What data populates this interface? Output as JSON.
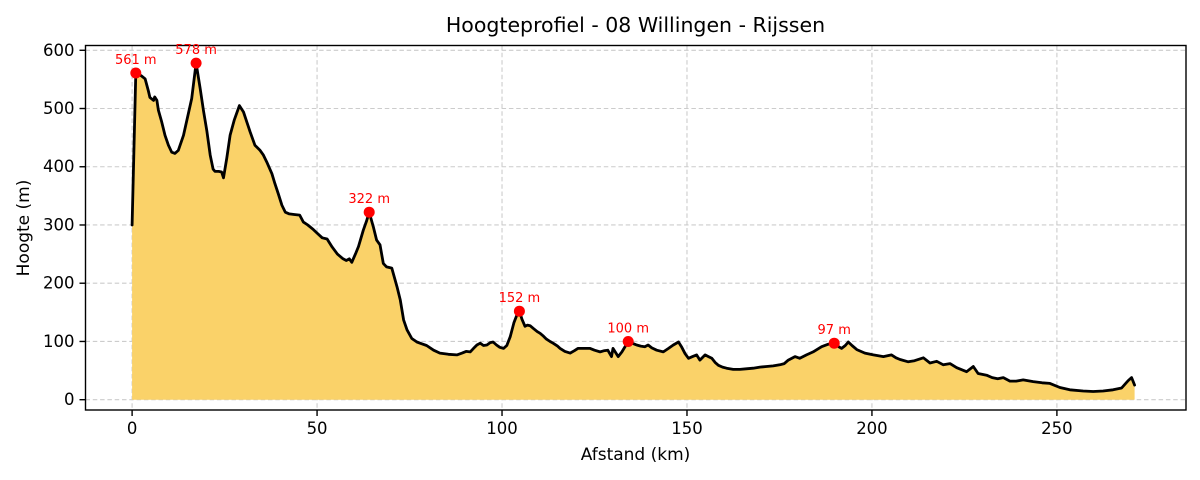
{
  "chart_data": {
    "type": "area",
    "title": "Hoogteprofiel - 08 Willingen - Rijssen",
    "xlabel": "Afstand (km)",
    "ylabel": "Hoogte (m)",
    "xlim": [
      -12.6,
      284.9
    ],
    "ylim": [
      -17.7,
      608.2
    ],
    "xticks": [
      0,
      50,
      100,
      150,
      200,
      250
    ],
    "yticks": [
      0,
      100,
      200,
      300,
      400,
      500,
      600
    ],
    "grid": true,
    "line_color": "#000000",
    "fill_color": "#fad269",
    "marker_color": "#ff0000",
    "peak_markers": [
      {
        "x": 1.0,
        "y": 561,
        "label": "561 m"
      },
      {
        "x": 17.3,
        "y": 578,
        "label": "578 m"
      },
      {
        "x": 64.1,
        "y": 322,
        "label": "322 m"
      },
      {
        "x": 104.7,
        "y": 152,
        "label": "152 m"
      },
      {
        "x": 134.1,
        "y": 100,
        "label": "100 m"
      },
      {
        "x": 189.8,
        "y": 97,
        "label": "97 m"
      }
    ],
    "points": [
      [
        0,
        300
      ],
      [
        1,
        561
      ],
      [
        2.5,
        556
      ],
      [
        3.5,
        551
      ],
      [
        4.4,
        530
      ],
      [
        4.8,
        519
      ],
      [
        5.8,
        514
      ],
      [
        6.1,
        520
      ],
      [
        6.7,
        514
      ],
      [
        7.1,
        497
      ],
      [
        8,
        477
      ],
      [
        8.9,
        454
      ],
      [
        9.8,
        437
      ],
      [
        10.7,
        425
      ],
      [
        11.6,
        423
      ],
      [
        12.5,
        428
      ],
      [
        13.9,
        454
      ],
      [
        15.2,
        491
      ],
      [
        16.1,
        517
      ],
      [
        17.3,
        578
      ],
      [
        18.4,
        534
      ],
      [
        19.3,
        496
      ],
      [
        20.2,
        462
      ],
      [
        21.1,
        420
      ],
      [
        21.9,
        396
      ],
      [
        22.4,
        392
      ],
      [
        23.4,
        392
      ],
      [
        24.2,
        391
      ],
      [
        24.7,
        381
      ],
      [
        25.6,
        415
      ],
      [
        26.5,
        454
      ],
      [
        27.6,
        480
      ],
      [
        29,
        505
      ],
      [
        30.1,
        494
      ],
      [
        31,
        477
      ],
      [
        31.9,
        460
      ],
      [
        33.2,
        437
      ],
      [
        34.6,
        428
      ],
      [
        35.5,
        420
      ],
      [
        36.4,
        408
      ],
      [
        37.8,
        388
      ],
      [
        38.6,
        371
      ],
      [
        39.5,
        354
      ],
      [
        40.5,
        334
      ],
      [
        41.4,
        322
      ],
      [
        42.5,
        319
      ],
      [
        43.8,
        318
      ],
      [
        45.3,
        317
      ],
      [
        46.3,
        305
      ],
      [
        47.5,
        300
      ],
      [
        49,
        292
      ],
      [
        50,
        286
      ],
      [
        51.4,
        278
      ],
      [
        52.7,
        276
      ],
      [
        54.1,
        262
      ],
      [
        55.5,
        250
      ],
      [
        57,
        242
      ],
      [
        57.9,
        239
      ],
      [
        58.7,
        242
      ],
      [
        59.4,
        236
      ],
      [
        60.5,
        252
      ],
      [
        61.2,
        263
      ],
      [
        62.5,
        291
      ],
      [
        63.4,
        307
      ],
      [
        64.1,
        322
      ],
      [
        65.2,
        297
      ],
      [
        66.1,
        274
      ],
      [
        67,
        266
      ],
      [
        67.9,
        234
      ],
      [
        68.8,
        228
      ],
      [
        70.2,
        226
      ],
      [
        71.6,
        194
      ],
      [
        72.5,
        171
      ],
      [
        73.4,
        137
      ],
      [
        74.3,
        120
      ],
      [
        75.6,
        105
      ],
      [
        77,
        99
      ],
      [
        78.3,
        96
      ],
      [
        79.6,
        93
      ],
      [
        81.5,
        85
      ],
      [
        83.2,
        80
      ],
      [
        85.5,
        78
      ],
      [
        87.8,
        77
      ],
      [
        89.2,
        80
      ],
      [
        90.3,
        83
      ],
      [
        91.4,
        82
      ],
      [
        92.3,
        88
      ],
      [
        93.2,
        94
      ],
      [
        94.1,
        97
      ],
      [
        95,
        93
      ],
      [
        95.9,
        94
      ],
      [
        96.8,
        98
      ],
      [
        97.6,
        99
      ],
      [
        98.5,
        94
      ],
      [
        99.4,
        90
      ],
      [
        100.4,
        88
      ],
      [
        101.3,
        93
      ],
      [
        102.2,
        108
      ],
      [
        103.2,
        132
      ],
      [
        104,
        145
      ],
      [
        104.7,
        152
      ],
      [
        105.4,
        138
      ],
      [
        106.2,
        126
      ],
      [
        106.9,
        128
      ],
      [
        107.6,
        127
      ],
      [
        108.5,
        122
      ],
      [
        109.5,
        117
      ],
      [
        110.3,
        114
      ],
      [
        111.2,
        109
      ],
      [
        112,
        104
      ],
      [
        113,
        100
      ],
      [
        113.8,
        97
      ],
      [
        115,
        92
      ],
      [
        115.7,
        88
      ],
      [
        117,
        83
      ],
      [
        118.4,
        80
      ],
      [
        119.5,
        84
      ],
      [
        120.5,
        88
      ],
      [
        122,
        88
      ],
      [
        123.8,
        88
      ],
      [
        125,
        85
      ],
      [
        126.5,
        82
      ],
      [
        127.5,
        84
      ],
      [
        128.6,
        85
      ],
      [
        129.6,
        74
      ],
      [
        130,
        88
      ],
      [
        131.4,
        74
      ],
      [
        132.4,
        82
      ],
      [
        134.1,
        100
      ],
      [
        135.2,
        97
      ],
      [
        136.4,
        94
      ],
      [
        137.5,
        92
      ],
      [
        138.6,
        91
      ],
      [
        139.5,
        94
      ],
      [
        140.5,
        89
      ],
      [
        141.8,
        85
      ],
      [
        143.6,
        82
      ],
      [
        145,
        88
      ],
      [
        146.3,
        94
      ],
      [
        147.7,
        99
      ],
      [
        148.6,
        90
      ],
      [
        149.5,
        79
      ],
      [
        150.4,
        71
      ],
      [
        151.5,
        74
      ],
      [
        152.6,
        77
      ],
      [
        153.5,
        68
      ],
      [
        154.9,
        77
      ],
      [
        155.8,
        74
      ],
      [
        156.7,
        71
      ],
      [
        157.6,
        64
      ],
      [
        158.5,
        59
      ],
      [
        159.6,
        56
      ],
      [
        160.7,
        54
      ],
      [
        162.5,
        52
      ],
      [
        164.3,
        52
      ],
      [
        166,
        53
      ],
      [
        167.9,
        54
      ],
      [
        169.7,
        56
      ],
      [
        171.5,
        57
      ],
      [
        173.3,
        58
      ],
      [
        175.1,
        60
      ],
      [
        176.3,
        62
      ],
      [
        177.4,
        68
      ],
      [
        179.2,
        74
      ],
      [
        180.5,
        71
      ],
      [
        182.3,
        77
      ],
      [
        184.1,
        82
      ],
      [
        186.4,
        91
      ],
      [
        188,
        95
      ],
      [
        189.8,
        97
      ],
      [
        191,
        91
      ],
      [
        191.8,
        88
      ],
      [
        192.8,
        93
      ],
      [
        193.6,
        99
      ],
      [
        194.6,
        93
      ],
      [
        195.9,
        86
      ],
      [
        198.1,
        80
      ],
      [
        200.4,
        77
      ],
      [
        203.1,
        74
      ],
      [
        205.3,
        77
      ],
      [
        206.5,
        72
      ],
      [
        207.6,
        69
      ],
      [
        209.8,
        65
      ],
      [
        211.5,
        67
      ],
      [
        213.9,
        72
      ],
      [
        215.7,
        63
      ],
      [
        217.5,
        66
      ],
      [
        219.3,
        60
      ],
      [
        221.1,
        62
      ],
      [
        222.9,
        55
      ],
      [
        225.6,
        48
      ],
      [
        227.4,
        57
      ],
      [
        228.7,
        45
      ],
      [
        231,
        42
      ],
      [
        232.5,
        38
      ],
      [
        234,
        36
      ],
      [
        235.5,
        38
      ],
      [
        237.3,
        32
      ],
      [
        239,
        32
      ],
      [
        240.9,
        34
      ],
      [
        243.6,
        31
      ],
      [
        246,
        29
      ],
      [
        248.1,
        28
      ],
      [
        250.8,
        21
      ],
      [
        253.5,
        17
      ],
      [
        257.1,
        15
      ],
      [
        259.8,
        14
      ],
      [
        262.5,
        15
      ],
      [
        265.2,
        17
      ],
      [
        267.5,
        20
      ],
      [
        269.3,
        33
      ],
      [
        270.2,
        38
      ],
      [
        271,
        25
      ]
    ]
  }
}
